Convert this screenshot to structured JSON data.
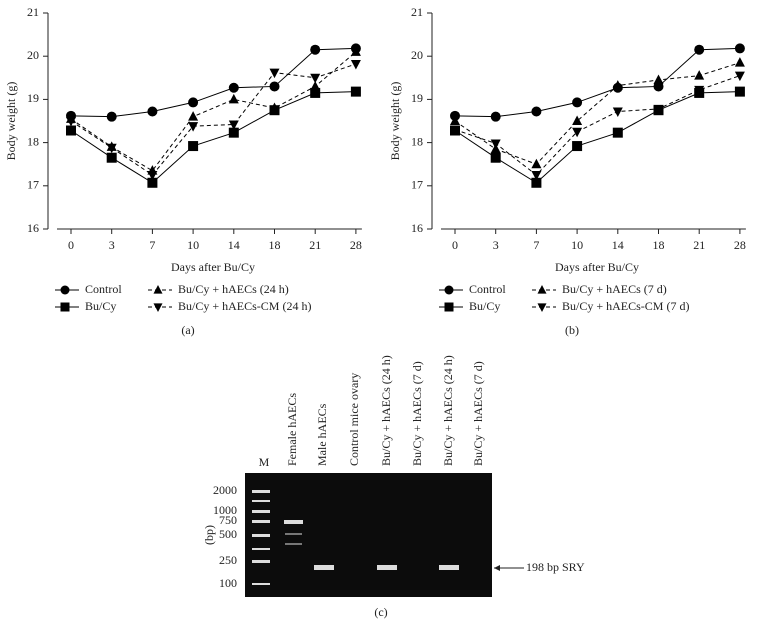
{
  "chart_data": [
    {
      "type": "line",
      "panel_label": "(a)",
      "xlabel": "Days after Bu/Cy",
      "ylabel": "Body weight (g)",
      "categories": [
        "0",
        "3",
        "7",
        "10",
        "14",
        "18",
        "21",
        "28"
      ],
      "ylim": [
        16,
        21
      ],
      "yticks": [
        16,
        17,
        18,
        19,
        20,
        21
      ],
      "series": [
        {
          "name": "Control",
          "color": "#000000",
          "marker": "circle",
          "dashed": false,
          "values": [
            18.62,
            18.6,
            18.72,
            18.93,
            19.27,
            19.3,
            20.15,
            20.18
          ]
        },
        {
          "name": "Bu/Cy",
          "color": "#000000",
          "marker": "square",
          "dashed": false,
          "values": [
            18.28,
            17.65,
            17.07,
            17.92,
            18.23,
            18.75,
            19.15,
            19.18
          ]
        },
        {
          "name": "Bu/Cy + hAECs (24 h)",
          "color": "#000000",
          "marker": "triangle-up",
          "dashed": true,
          "values": [
            18.55,
            17.9,
            17.35,
            18.6,
            19.0,
            18.8,
            19.3,
            20.1
          ]
        },
        {
          "name": "Bu/Cy + hAECs-CM (24 h)",
          "color": "#000000",
          "marker": "triangle-down",
          "dashed": true,
          "values": [
            18.5,
            17.88,
            17.25,
            18.38,
            18.42,
            19.62,
            19.5,
            19.82
          ]
        }
      ]
    },
    {
      "type": "line",
      "panel_label": "(b)",
      "xlabel": "Days after Bu/Cy",
      "ylabel": "Body weight (g)",
      "categories": [
        "0",
        "3",
        "7",
        "10",
        "14",
        "18",
        "21",
        "28"
      ],
      "ylim": [
        16,
        21
      ],
      "yticks": [
        16,
        17,
        18,
        19,
        20,
        21
      ],
      "series": [
        {
          "name": "Control",
          "color": "#000000",
          "marker": "circle",
          "dashed": false,
          "values": [
            18.62,
            18.6,
            18.72,
            18.93,
            19.27,
            19.3,
            20.15,
            20.18
          ]
        },
        {
          "name": "Bu/Cy",
          "color": "#000000",
          "marker": "square",
          "dashed": false,
          "values": [
            18.28,
            17.65,
            17.07,
            17.92,
            18.23,
            18.75,
            19.15,
            19.18
          ]
        },
        {
          "name": "Bu/Cy + hAECs (7 d)",
          "color": "#000000",
          "marker": "triangle-up",
          "dashed": true,
          "values": [
            18.5,
            17.85,
            17.5,
            18.5,
            19.32,
            19.45,
            19.55,
            19.85
          ]
        },
        {
          "name": "Bu/Cy + hAECs-CM (7 d)",
          "color": "#000000",
          "marker": "triangle-down",
          "dashed": true,
          "values": [
            18.3,
            17.98,
            17.25,
            18.25,
            18.72,
            18.78,
            19.22,
            19.55
          ]
        }
      ]
    }
  ],
  "gel": {
    "panel_label": "(c)",
    "axis_label": "(bp)",
    "annotation": "198 bp SRY",
    "lanes": [
      "M",
      "Female hAECs",
      "Male hAECs",
      "Control mice ovary",
      "Bu/Cy + hAECs (24 h)",
      "Bu/Cy + hAECs (7 d)",
      "Bu/Cy + hAECs (24 h)",
      "Bu/Cy + hAECs (7 d)"
    ],
    "ladder": [
      "2000",
      "1000",
      "750",
      "500",
      "250",
      "100"
    ]
  }
}
